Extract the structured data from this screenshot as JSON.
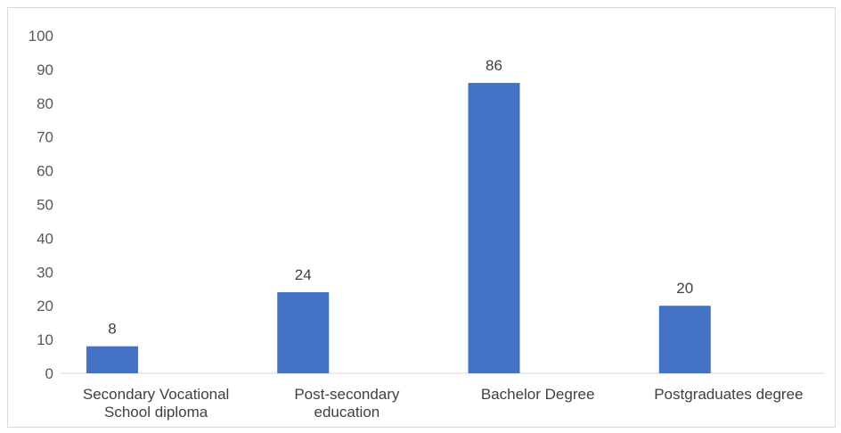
{
  "chart_data": {
    "type": "bar",
    "categories": [
      [
        "Secondary Vocational",
        "School diploma"
      ],
      [
        "Post-secondary",
        "education"
      ],
      [
        "Bachelor Degree"
      ],
      [
        "Postgraduates degree"
      ]
    ],
    "values": [
      8,
      24,
      86,
      20
    ],
    "ylim": [
      0,
      100
    ],
    "yticks": [
      0,
      10,
      20,
      30,
      40,
      50,
      60,
      70,
      80,
      90,
      100
    ],
    "bar_color": "#4472C4",
    "grid": false,
    "data_labels": true
  }
}
